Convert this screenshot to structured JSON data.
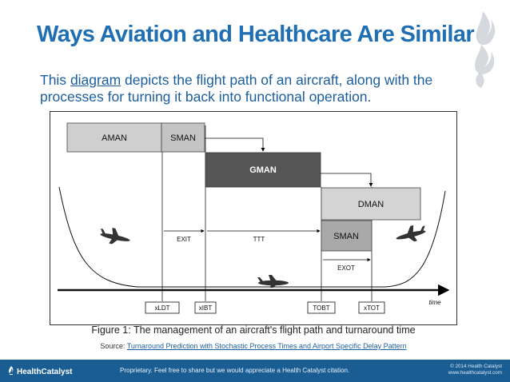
{
  "slide": {
    "title": "Ways Aviation and Healthcare Are Similar",
    "subtitle_before": "This ",
    "subtitle_link": "diagram",
    "subtitle_after": " depicts the flight path of an aircraft, along with the processes for turning it back into functional operation."
  },
  "diagram": {
    "boxes": [
      {
        "label": "AMAN",
        "fill": "#cfcfcf",
        "text_color": "#111111"
      },
      {
        "label": "SMAN",
        "fill": "#c4c4c4",
        "text_color": "#111111"
      },
      {
        "label": "GMAN",
        "fill": "#555555",
        "text_color": "#ffffff"
      },
      {
        "label": "DMAN",
        "fill": "#d4d4d4",
        "text_color": "#111111"
      },
      {
        "label": "SMAN",
        "fill": "#a9a9a9",
        "text_color": "#111111"
      }
    ],
    "interval_labels": [
      "EXIT",
      "TTT",
      "EXOT"
    ],
    "time_markers": [
      "xLDT",
      "xIBT",
      "TOBT",
      "xTOT"
    ],
    "axis_label": "time"
  },
  "caption": "Figure 1: The management of an aircraft's flight path and turnaround time",
  "source": {
    "prefix": "Source: ",
    "link_text": "Turnaround Prediction with Stochastic Process Times and Airport Specific Delay Pattern"
  },
  "footer": {
    "brand": "HealthCatalyst",
    "notice": "Proprietary. Feel free to share but we would appreciate a Health Catalyst citation.",
    "copyright": "© 2014 Health Catalyst",
    "website": "www.healthcatalyst.com"
  },
  "colors": {
    "title_blue": "#1f6fb2",
    "footer_blue": "#1a5d93",
    "logo_gray": "#d5d8dc"
  }
}
